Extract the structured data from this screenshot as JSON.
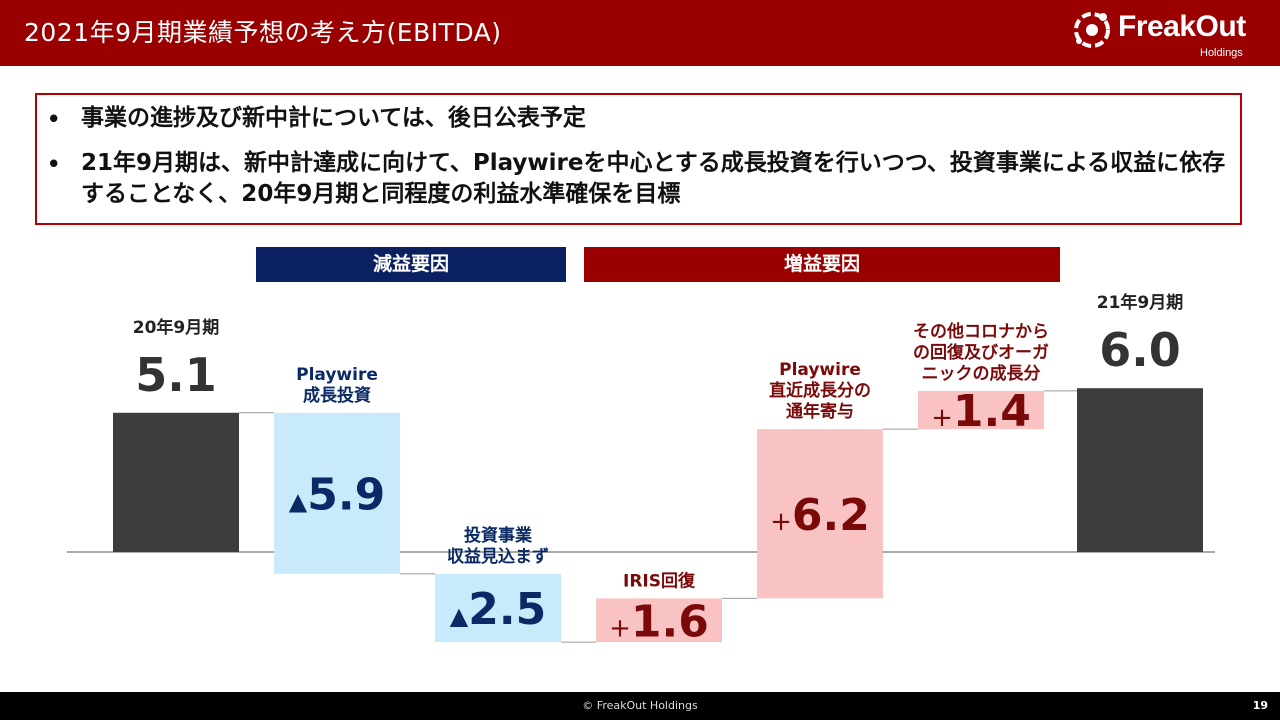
{
  "header": {
    "title": "2021年9月期業績予想の考え方(EBITDA)",
    "logo_text": "FreakOut",
    "logo_sub": "Holdings",
    "bg_color": "#9b0000"
  },
  "summary": {
    "bullet": "•",
    "items": [
      "事業の進捗及び新中計については、後日公表予定",
      "21年9月期は、新中計達成に向けて、Playwireを中心とする成長投資を行いつつ、投資事業による収益に依存することなく、20年9月期と同程度の利益水準確保を目標"
    ]
  },
  "banners": {
    "decrease": "減益要因",
    "increase": "増益要因",
    "decrease_color": "#0a2060",
    "increase_color": "#9b0000"
  },
  "chart_data": {
    "type": "bar",
    "subtype": "waterfall",
    "title": "",
    "steps": [
      {
        "label": "20年9月期",
        "value": 5.1,
        "kind": "total",
        "value_label": "5.1"
      },
      {
        "label": "Playwire\n成長投資",
        "value": -5.9,
        "kind": "decrease",
        "value_label": "▲5.9"
      },
      {
        "label": "投資事業\n収益見込まず",
        "value": -2.5,
        "kind": "decrease",
        "value_label": "▲2.5"
      },
      {
        "label": "IRIS回復",
        "value": 1.6,
        "kind": "increase",
        "value_label": "+1.6"
      },
      {
        "label": "Playwire\n直近成長分の\n通年寄与",
        "value": 6.2,
        "kind": "increase",
        "value_label": "+6.2"
      },
      {
        "label": "その他コロナから\nの回復及びオーガ\nニックの成長分",
        "value": 1.4,
        "kind": "increase",
        "value_label": "+1.4"
      },
      {
        "label": "21年9月期",
        "value": 6.0,
        "kind": "total",
        "value_label": "6.0"
      }
    ],
    "colors": {
      "total": "#3d3d3d",
      "decrease_fill": "#c8eafb",
      "decrease_text": "#0a2a66",
      "increase_fill": "#f9c3c3",
      "increase_text": "#7a0a0a",
      "total_text": "#333333"
    }
  },
  "footer": {
    "copyright": "© FreakOut Holdings",
    "page": "19"
  }
}
